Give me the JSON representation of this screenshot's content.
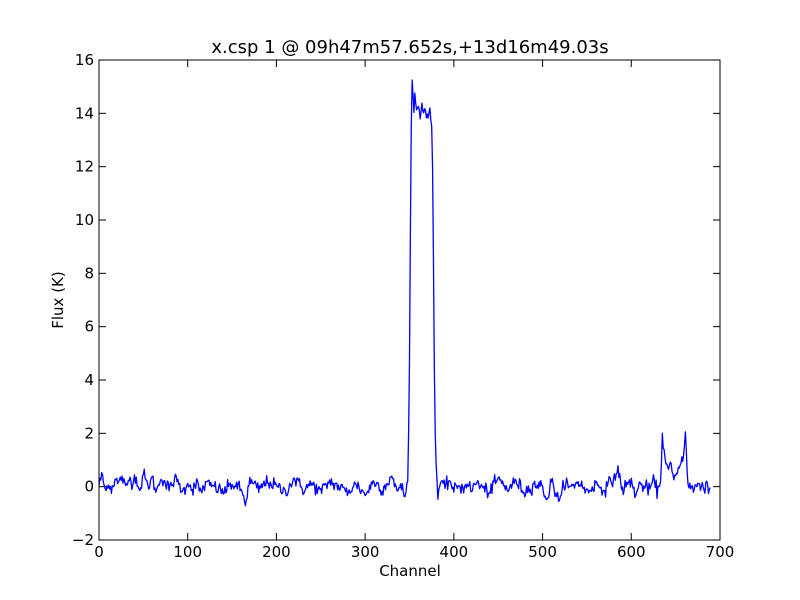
{
  "chart_data": {
    "type": "line",
    "title": "x.csp 1 @ 09h47m57.652s,+13d16m49.03s",
    "xlabel": "Channel",
    "ylabel": "Flux (K)",
    "xlim": [
      0,
      700
    ],
    "ylim": [
      -2,
      16
    ],
    "xticks": [
      0,
      100,
      200,
      300,
      400,
      500,
      600,
      700
    ],
    "yticks": [
      -2,
      0,
      2,
      4,
      6,
      8,
      10,
      12,
      14,
      16
    ],
    "xtick_labels": [
      "0",
      "100",
      "200",
      "300",
      "400",
      "500",
      "600",
      "700"
    ],
    "ytick_labels": [
      "−2",
      "0",
      "2",
      "4",
      "6",
      "8",
      "10",
      "12",
      "14",
      "16"
    ],
    "grid": false,
    "legend": "none",
    "colors": {
      "line": "#0000ff",
      "axes": "#000000"
    },
    "series": [
      {
        "x_start": 0,
        "x_end": 689,
        "baseline_noise_sigma": 0.18,
        "points": [
          [
            0,
            0.1
          ],
          [
            2,
            0.3
          ],
          [
            4,
            0.4
          ],
          [
            6,
            0.0
          ],
          [
            8,
            -0.2
          ],
          [
            10,
            0.2
          ],
          [
            14,
            -0.1
          ],
          [
            18,
            0.3
          ],
          [
            22,
            0.1
          ],
          [
            26,
            0.4
          ],
          [
            30,
            -0.1
          ],
          [
            34,
            0.3
          ],
          [
            38,
            0.2
          ],
          [
            42,
            0.4
          ],
          [
            46,
            -0.2
          ],
          [
            50,
            0.5
          ],
          [
            55,
            0.0
          ],
          [
            60,
            0.3
          ],
          [
            65,
            -0.2
          ],
          [
            70,
            0.4
          ],
          [
            75,
            0.1
          ],
          [
            80,
            -0.1
          ],
          [
            85,
            0.3
          ],
          [
            90,
            0.1
          ],
          [
            95,
            -0.2
          ],
          [
            100,
            0.2
          ],
          [
            105,
            -0.1
          ],
          [
            110,
            0.1
          ],
          [
            115,
            -0.2
          ],
          [
            120,
            0.1
          ],
          [
            130,
            0.0
          ],
          [
            140,
            -0.2
          ],
          [
            150,
            0.1
          ],
          [
            160,
            -0.1
          ],
          [
            165,
            -0.6
          ],
          [
            170,
            0.2
          ],
          [
            180,
            -0.1
          ],
          [
            190,
            0.2
          ],
          [
            200,
            0.0
          ],
          [
            210,
            -0.2
          ],
          [
            220,
            0.3
          ],
          [
            230,
            -0.1
          ],
          [
            240,
            0.1
          ],
          [
            250,
            -0.2
          ],
          [
            260,
            0.2
          ],
          [
            270,
            0.0
          ],
          [
            280,
            -0.2
          ],
          [
            290,
            0.1
          ],
          [
            300,
            -0.3
          ],
          [
            310,
            0.2
          ],
          [
            320,
            -0.1
          ],
          [
            330,
            0.4
          ],
          [
            335,
            -0.2
          ],
          [
            340,
            0.1
          ],
          [
            345,
            -0.4
          ],
          [
            348,
            0.2
          ],
          [
            349,
            2.0
          ],
          [
            350,
            5.0
          ],
          [
            351,
            9.5
          ],
          [
            352,
            13.5
          ],
          [
            353,
            15.2
          ],
          [
            354,
            14.6
          ],
          [
            355,
            14.2
          ],
          [
            356,
            14.7
          ],
          [
            358,
            14.1
          ],
          [
            360,
            14.3
          ],
          [
            362,
            13.9
          ],
          [
            364,
            14.4
          ],
          [
            366,
            14.0
          ],
          [
            368,
            14.2
          ],
          [
            370,
            13.8
          ],
          [
            372,
            13.9
          ],
          [
            373,
            14.3
          ],
          [
            374,
            13.7
          ],
          [
            375,
            13.5
          ],
          [
            376,
            12.0
          ],
          [
            377,
            8.5
          ],
          [
            378,
            4.5
          ],
          [
            379,
            2.2
          ],
          [
            380,
            0.8
          ],
          [
            381,
            0.2
          ],
          [
            382,
            -0.3
          ],
          [
            385,
            0.2
          ],
          [
            390,
            -0.1
          ],
          [
            395,
            0.3
          ],
          [
            400,
            -0.2
          ],
          [
            405,
            0.1
          ],
          [
            410,
            -0.1
          ],
          [
            415,
            0.2
          ],
          [
            420,
            -0.2
          ],
          [
            425,
            0.2
          ],
          [
            430,
            0.0
          ],
          [
            440,
            -0.2
          ],
          [
            450,
            0.3
          ],
          [
            460,
            -0.1
          ],
          [
            470,
            0.2
          ],
          [
            480,
            -0.2
          ],
          [
            490,
            0.1
          ],
          [
            500,
            0.0
          ],
          [
            505,
            -0.5
          ],
          [
            510,
            0.2
          ],
          [
            520,
            -0.6
          ],
          [
            525,
            0.3
          ],
          [
            530,
            -0.1
          ],
          [
            540,
            0.2
          ],
          [
            550,
            -0.2
          ],
          [
            560,
            0.1
          ],
          [
            570,
            -0.1
          ],
          [
            580,
            0.3
          ],
          [
            585,
            0.6
          ],
          [
            590,
            -0.1
          ],
          [
            600,
            0.2
          ],
          [
            605,
            -0.3
          ],
          [
            610,
            0.1
          ],
          [
            620,
            -0.1
          ],
          [
            625,
            0.2
          ],
          [
            630,
            -0.2
          ],
          [
            633,
            0.3
          ],
          [
            634,
            1.0
          ],
          [
            635,
            1.9
          ],
          [
            636,
            1.5
          ],
          [
            638,
            1.2
          ],
          [
            640,
            0.8
          ],
          [
            642,
            0.6
          ],
          [
            644,
            0.9
          ],
          [
            646,
            0.5
          ],
          [
            648,
            0.3
          ],
          [
            650,
            0.4
          ],
          [
            652,
            0.5
          ],
          [
            654,
            0.7
          ],
          [
            656,
            0.9
          ],
          [
            658,
            1.1
          ],
          [
            660,
            1.6
          ],
          [
            661,
            2.0
          ],
          [
            662,
            1.4
          ],
          [
            663,
            0.6
          ],
          [
            664,
            0.2
          ],
          [
            666,
            0.0
          ],
          [
            668,
            -0.1
          ],
          [
            670,
            -0.1
          ],
          [
            675,
            0.0
          ],
          [
            680,
            0.1
          ],
          [
            683,
            -0.2
          ],
          [
            685,
            0.2
          ],
          [
            687,
            -0.2
          ],
          [
            689,
            0.1
          ]
        ]
      }
    ]
  }
}
